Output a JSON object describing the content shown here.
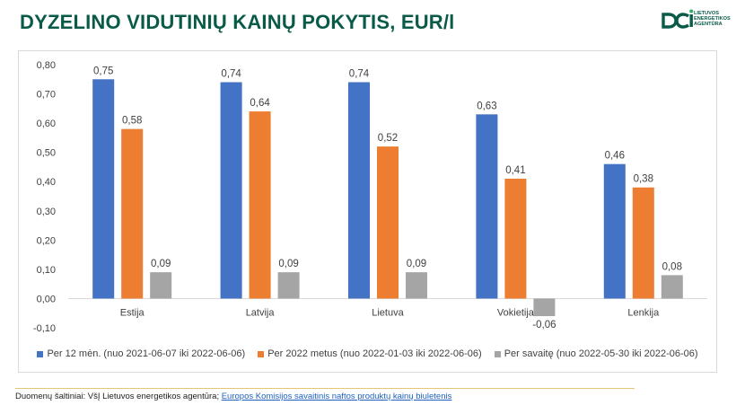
{
  "header": {
    "title": "DYZELINO VIDUTINIŲ KAINŲ POKYTIS, EUR/l",
    "logo_lines": [
      "LIETUVOS",
      "ENERGETIKOS",
      "AGENTŪRA"
    ]
  },
  "chart_data": {
    "type": "bar",
    "categories": [
      "Estija",
      "Latvija",
      "Lietuva",
      "Vokietija",
      "Lenkija"
    ],
    "series": [
      {
        "name": "Per 12 mėn. (nuo 2021-06-07 iki 2022-06-06)",
        "values": [
          0.75,
          0.74,
          0.74,
          0.63,
          0.46
        ],
        "labels": [
          "0,75",
          "0,74",
          "0,74",
          "0,63",
          "0,46"
        ],
        "color": "#4472c4"
      },
      {
        "name": "Per 2022 metus (nuo 2022-01-03 iki 2022-06-06)",
        "values": [
          0.58,
          0.64,
          0.52,
          0.41,
          0.38
        ],
        "labels": [
          "0,58",
          "0,64",
          "0,52",
          "0,41",
          "0,38"
        ],
        "color": "#ed7d31"
      },
      {
        "name": "Per savaitę (nuo 2022-05-30 iki 2022-06-06)",
        "values": [
          0.09,
          0.09,
          0.09,
          -0.06,
          0.08
        ],
        "labels": [
          "0,09",
          "0,09",
          "0,09",
          "-0,06",
          "0,08"
        ],
        "color": "#a5a5a5"
      }
    ],
    "ylim": [
      -0.1,
      0.8
    ],
    "yticks": [
      -0.1,
      0.0,
      0.1,
      0.2,
      0.3,
      0.4,
      0.5,
      0.6,
      0.7,
      0.8
    ],
    "ytick_labels": [
      "-0,10",
      "0,00",
      "0,10",
      "0,20",
      "0,30",
      "0,40",
      "0,50",
      "0,60",
      "0,70",
      "0,80"
    ],
    "grid": false,
    "legend": "bottom"
  },
  "footer": {
    "source_prefix": "Duomenų šaltiniai: VšĮ Lietuvos energetikos agentūra; ",
    "source_link": "Europos Komisijos savaitinis naftos produktų kainų biuletenis"
  }
}
